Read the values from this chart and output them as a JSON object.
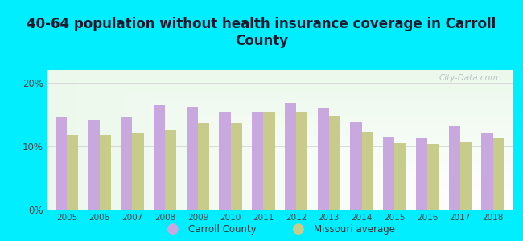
{
  "title": "40-64 population without health insurance coverage in Carroll\nCounty",
  "years": [
    2005,
    2006,
    2007,
    2008,
    2009,
    2010,
    2011,
    2012,
    2013,
    2014,
    2015,
    2016,
    2017,
    2018
  ],
  "carroll_county": [
    14.5,
    14.2,
    14.5,
    16.5,
    16.2,
    15.3,
    15.4,
    16.8,
    16.1,
    13.8,
    11.4,
    11.3,
    13.1,
    12.2
  ],
  "missouri_avg": [
    11.7,
    11.8,
    12.2,
    12.5,
    13.6,
    13.7,
    15.4,
    15.3,
    14.8,
    12.3,
    10.5,
    10.4,
    10.6,
    11.2
  ],
  "carroll_color": "#c9a8e0",
  "missouri_color": "#c8cc8a",
  "background_outer": "#00eeff",
  "title_fontsize": 12,
  "ylim": [
    0,
    22
  ],
  "yticks": [
    0,
    10,
    20
  ],
  "ytick_labels": [
    "0%",
    "10%",
    "20%"
  ],
  "bar_width": 0.35,
  "legend_carroll": "Carroll County",
  "legend_missouri": "Missouri average"
}
